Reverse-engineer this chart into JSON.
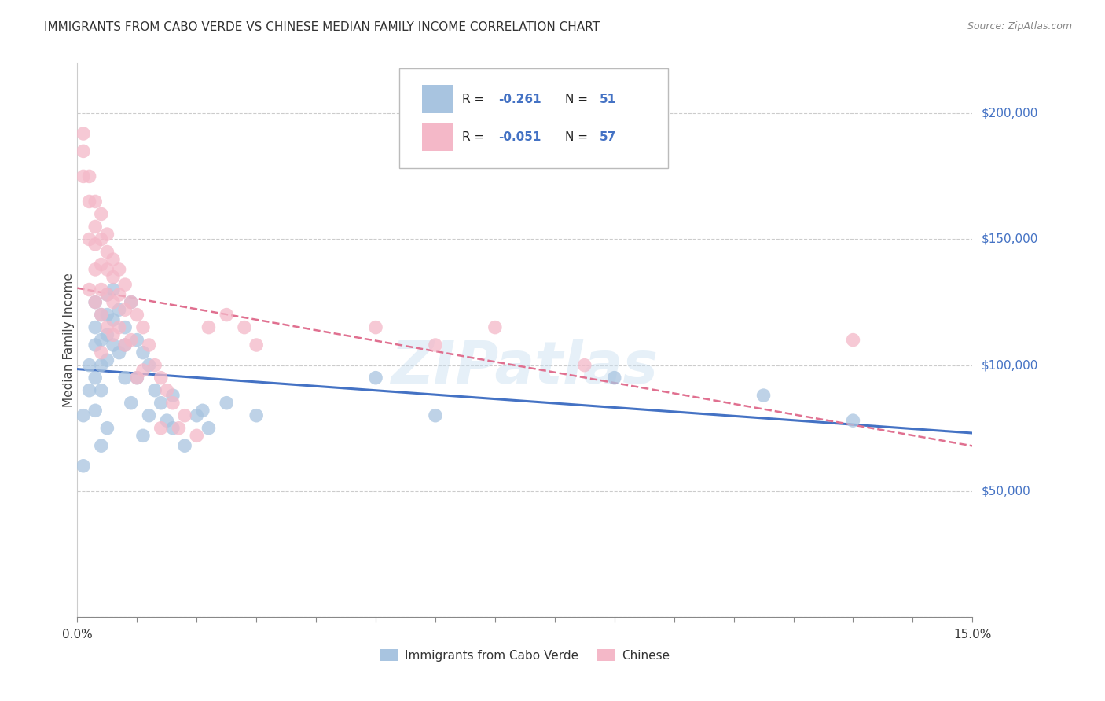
{
  "title": "IMMIGRANTS FROM CABO VERDE VS CHINESE MEDIAN FAMILY INCOME CORRELATION CHART",
  "source": "Source: ZipAtlas.com",
  "ylabel": "Median Family Income",
  "yticks": [
    0,
    50000,
    100000,
    150000,
    200000
  ],
  "ytick_labels": [
    "",
    "$50,000",
    "$100,000",
    "$150,000",
    "$200,000"
  ],
  "xlim": [
    0.0,
    0.15
  ],
  "ylim": [
    0,
    220000
  ],
  "cabo_verde_color": "#a8c4e0",
  "chinese_color": "#f4b8c8",
  "cabo_verde_line_color": "#4472c4",
  "chinese_line_color": "#e07090",
  "watermark": "ZIPatlas",
  "cabo_verde_x": [
    0.001,
    0.001,
    0.002,
    0.002,
    0.003,
    0.003,
    0.003,
    0.003,
    0.003,
    0.004,
    0.004,
    0.004,
    0.004,
    0.004,
    0.005,
    0.005,
    0.005,
    0.005,
    0.005,
    0.006,
    0.006,
    0.006,
    0.007,
    0.007,
    0.008,
    0.008,
    0.008,
    0.009,
    0.009,
    0.01,
    0.01,
    0.011,
    0.011,
    0.012,
    0.012,
    0.013,
    0.014,
    0.015,
    0.016,
    0.016,
    0.018,
    0.02,
    0.021,
    0.022,
    0.025,
    0.03,
    0.05,
    0.06,
    0.09,
    0.115,
    0.13
  ],
  "cabo_verde_y": [
    80000,
    60000,
    100000,
    90000,
    125000,
    115000,
    108000,
    95000,
    82000,
    120000,
    110000,
    100000,
    90000,
    68000,
    128000,
    120000,
    112000,
    102000,
    75000,
    130000,
    118000,
    108000,
    122000,
    105000,
    115000,
    108000,
    95000,
    125000,
    85000,
    110000,
    95000,
    105000,
    72000,
    100000,
    80000,
    90000,
    85000,
    78000,
    75000,
    88000,
    68000,
    80000,
    82000,
    75000,
    85000,
    80000,
    95000,
    80000,
    95000,
    88000,
    78000
  ],
  "chinese_x": [
    0.001,
    0.001,
    0.001,
    0.002,
    0.002,
    0.002,
    0.002,
    0.003,
    0.003,
    0.003,
    0.003,
    0.003,
    0.004,
    0.004,
    0.004,
    0.004,
    0.004,
    0.004,
    0.005,
    0.005,
    0.005,
    0.005,
    0.005,
    0.006,
    0.006,
    0.006,
    0.006,
    0.007,
    0.007,
    0.007,
    0.008,
    0.008,
    0.008,
    0.009,
    0.009,
    0.01,
    0.01,
    0.011,
    0.011,
    0.012,
    0.013,
    0.014,
    0.014,
    0.015,
    0.016,
    0.017,
    0.018,
    0.02,
    0.022,
    0.025,
    0.028,
    0.03,
    0.05,
    0.06,
    0.07,
    0.085,
    0.13
  ],
  "chinese_y": [
    192000,
    185000,
    175000,
    175000,
    165000,
    150000,
    130000,
    165000,
    155000,
    148000,
    138000,
    125000,
    160000,
    150000,
    140000,
    130000,
    120000,
    105000,
    152000,
    145000,
    138000,
    128000,
    115000,
    142000,
    135000,
    125000,
    112000,
    138000,
    128000,
    115000,
    132000,
    122000,
    108000,
    125000,
    110000,
    120000,
    95000,
    115000,
    98000,
    108000,
    100000,
    95000,
    75000,
    90000,
    85000,
    75000,
    80000,
    72000,
    115000,
    120000,
    115000,
    108000,
    115000,
    108000,
    115000,
    100000,
    110000
  ]
}
